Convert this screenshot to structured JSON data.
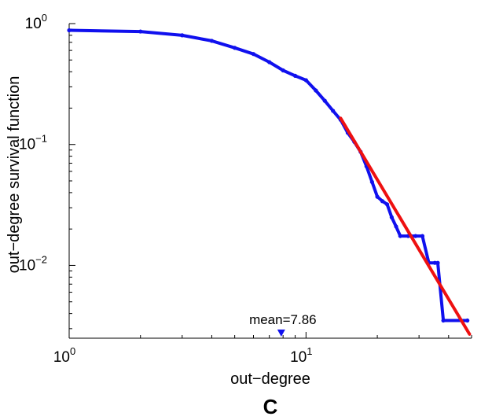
{
  "chart_data": {
    "type": "line",
    "panel_label": "C",
    "xlabel": "out−degree",
    "ylabel": "out−degree survival function",
    "x_scale": "log",
    "y_scale": "log",
    "xlim": [
      1,
      50
    ],
    "ylim": [
      0.0025,
      1.0
    ],
    "grid": false,
    "x_ticks": [
      {
        "base": "10",
        "exp": "0",
        "value": 1
      },
      {
        "base": "10",
        "exp": "1",
        "value": 10
      }
    ],
    "y_ticks": [
      {
        "base": "10",
        "exp": "0",
        "value": 1
      },
      {
        "base": "10",
        "exp": "−1",
        "value": 0.1
      },
      {
        "base": "10",
        "exp": "−2",
        "value": 0.01
      }
    ],
    "series": [
      {
        "color": "#1010ee",
        "style": "line-markers",
        "x": [
          1,
          2,
          3,
          4,
          5,
          6,
          7,
          8,
          9,
          10,
          11,
          12,
          13,
          14,
          15,
          16,
          17,
          18,
          19,
          20,
          21,
          22,
          23,
          24,
          25,
          27,
          29,
          31,
          33,
          35,
          36,
          38,
          48
        ],
        "y": [
          0.88,
          0.86,
          0.8,
          0.72,
          0.63,
          0.56,
          0.48,
          0.41,
          0.37,
          0.34,
          0.28,
          0.23,
          0.19,
          0.16,
          0.125,
          0.105,
          0.087,
          0.066,
          0.049,
          0.037,
          0.034,
          0.032,
          0.025,
          0.021,
          0.0175,
          0.0175,
          0.0175,
          0.0175,
          0.0105,
          0.0105,
          0.0105,
          0.0035,
          0.0035
        ]
      },
      {
        "color": "#ee1010",
        "style": "fit-line",
        "x": [
          14,
          49
        ],
        "y": [
          0.165,
          0.0027
        ]
      }
    ],
    "annotation": {
      "text": "mean=7.86",
      "x": 7.86,
      "marker": "triangle-down",
      "marker_color": "#1010ee"
    }
  }
}
